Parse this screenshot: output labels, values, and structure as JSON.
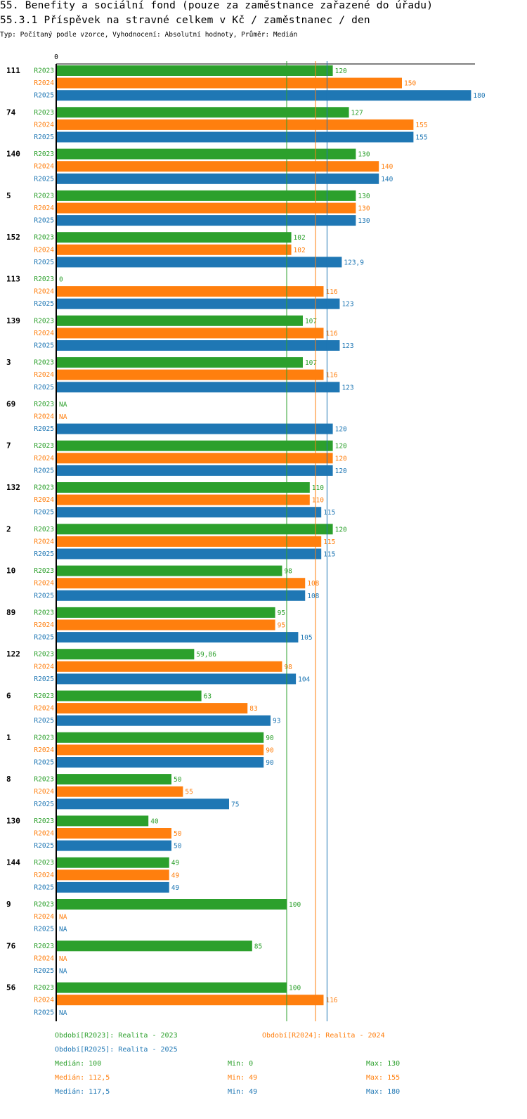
{
  "header": {
    "title": "55. Benefity a sociální fond (pouze za zaměstnance zařazené do úřadu)",
    "subtitle": "55.3.1 Příspěvek na stravné celkem v Kč / zaměstnanec / den",
    "meta": "Typ: Počítaný podle vzorce, Vyhodnocení: Absolutní hodnoty, Průměr: Medián"
  },
  "colors": {
    "R2023": "#2ca02c",
    "R2024": "#ff7f0e",
    "R2025": "#1f77b4"
  },
  "chart_data": {
    "type": "bar",
    "orientation": "horizontal",
    "x_axis_label": "0",
    "series_names": [
      "R2023",
      "R2024",
      "R2025"
    ],
    "xlim": [
      0,
      182
    ],
    "groups": [
      {
        "id": "111",
        "values": [
          120,
          150,
          180
        ],
        "labels": [
          "120",
          "150",
          "180"
        ]
      },
      {
        "id": "74",
        "values": [
          127,
          155,
          155
        ],
        "labels": [
          "127",
          "155",
          "155"
        ]
      },
      {
        "id": "140",
        "values": [
          130,
          140,
          140
        ],
        "labels": [
          "130",
          "140",
          "140"
        ]
      },
      {
        "id": "5",
        "values": [
          130,
          130,
          130
        ],
        "labels": [
          "130",
          "130",
          "130"
        ]
      },
      {
        "id": "152",
        "values": [
          102,
          102,
          123.9
        ],
        "labels": [
          "102",
          "102",
          "123,9"
        ]
      },
      {
        "id": "113",
        "values": [
          0,
          116,
          123
        ],
        "labels": [
          "0",
          "116",
          "123"
        ]
      },
      {
        "id": "139",
        "values": [
          107,
          116,
          123
        ],
        "labels": [
          "107",
          "116",
          "123"
        ]
      },
      {
        "id": "3",
        "values": [
          107,
          116,
          123
        ],
        "labels": [
          "107",
          "116",
          "123"
        ]
      },
      {
        "id": "69",
        "values": [
          null,
          null,
          120
        ],
        "labels": [
          "NA",
          "NA",
          "120"
        ]
      },
      {
        "id": "7",
        "values": [
          120,
          120,
          120
        ],
        "labels": [
          "120",
          "120",
          "120"
        ]
      },
      {
        "id": "132",
        "values": [
          110,
          110,
          115
        ],
        "labels": [
          "110",
          "110",
          "115"
        ]
      },
      {
        "id": "2",
        "values": [
          120,
          115,
          115
        ],
        "labels": [
          "120",
          "115",
          "115"
        ]
      },
      {
        "id": "10",
        "values": [
          98,
          108,
          108
        ],
        "labels": [
          "98",
          "108",
          "108"
        ]
      },
      {
        "id": "89",
        "values": [
          95,
          95,
          105
        ],
        "labels": [
          "95",
          "95",
          "105"
        ]
      },
      {
        "id": "122",
        "values": [
          59.86,
          98,
          104
        ],
        "labels": [
          "59,86",
          "98",
          "104"
        ]
      },
      {
        "id": "6",
        "values": [
          63,
          83,
          93
        ],
        "labels": [
          "63",
          "83",
          "93"
        ]
      },
      {
        "id": "1",
        "values": [
          90,
          90,
          90
        ],
        "labels": [
          "90",
          "90",
          "90"
        ]
      },
      {
        "id": "8",
        "values": [
          50,
          55,
          75
        ],
        "labels": [
          "50",
          "55",
          "75"
        ]
      },
      {
        "id": "130",
        "values": [
          40,
          50,
          50
        ],
        "labels": [
          "40",
          "50",
          "50"
        ]
      },
      {
        "id": "144",
        "values": [
          49,
          49,
          49
        ],
        "labels": [
          "49",
          "49",
          "49"
        ]
      },
      {
        "id": "9",
        "values": [
          100,
          null,
          null
        ],
        "labels": [
          "100",
          "NA",
          "NA"
        ]
      },
      {
        "id": "76",
        "values": [
          85,
          null,
          null
        ],
        "labels": [
          "85",
          "NA",
          "NA"
        ]
      },
      {
        "id": "56",
        "values": [
          100,
          116,
          null
        ],
        "labels": [
          "100",
          "116",
          "NA"
        ]
      }
    ],
    "median_lines": [
      100,
      112.5,
      117.5
    ],
    "legend": [
      {
        "series": "R2023",
        "text": "Období[R2023]: Realita - 2023"
      },
      {
        "series": "R2024",
        "text": "Období[R2024]: Realita - 2024"
      },
      {
        "series": "R2025",
        "text": "Období[R2025]: Realita - 2025"
      }
    ],
    "stats": [
      {
        "series": "R2023",
        "median": "Medián: 100",
        "min": "Min: 0",
        "max": "Max: 130"
      },
      {
        "series": "R2024",
        "median": "Medián: 112,5",
        "min": "Min: 49",
        "max": "Max: 155"
      },
      {
        "series": "R2025",
        "median": "Medián: 117,5",
        "min": "Min: 49",
        "max": "Max: 180"
      }
    ]
  }
}
